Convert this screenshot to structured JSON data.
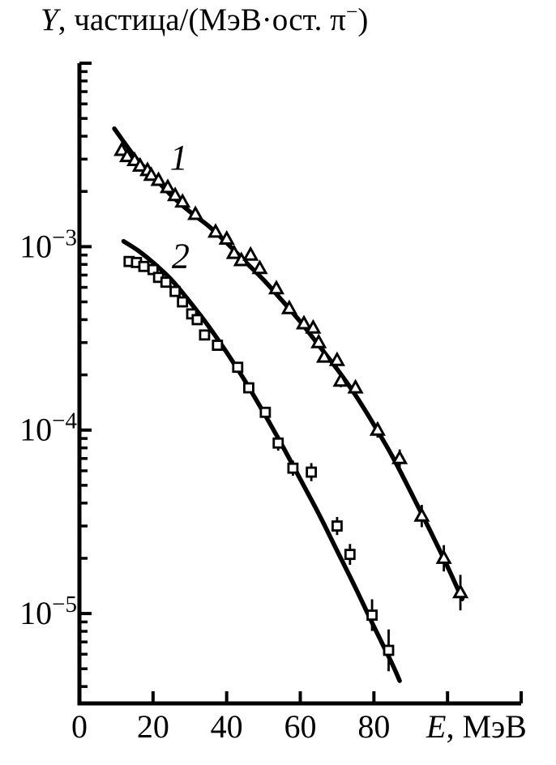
{
  "colors": {
    "ink": "#000000",
    "background": "#ffffff"
  },
  "chart_data": {
    "type": "scatter",
    "title": {
      "italic_prefix": "Y",
      "text": ", частица/(МэВ·ост. π",
      "superscript": "−",
      "suffix": ")"
    },
    "x_axis": {
      "label_italic": "E",
      "label_rest": ", МэВ",
      "min": 0,
      "max": 120,
      "tick_step": 20,
      "labeled_ticks": [
        0,
        20,
        40,
        60,
        80
      ]
    },
    "y_axis": {
      "scale": "log",
      "range_log10": [
        -5.49,
        -2
      ],
      "unlabeled_top_tick": 0.01,
      "major_ticks": [
        {
          "value": 0.001,
          "base": "10",
          "exponent": "−3"
        },
        {
          "value": 0.0001,
          "base": "10",
          "exponent": "−4"
        },
        {
          "value": 1e-05,
          "base": "10",
          "exponent": "−5"
        }
      ],
      "minor_tick_decades": [
        -3,
        -4,
        -5,
        -6
      ]
    },
    "series": [
      {
        "name": "1",
        "marker": "triangle",
        "label_at": {
          "E": 27,
          "Y": 0.0031
        },
        "points": [
          [
            11.5,
            0.00335,
            0
          ],
          [
            13,
            0.0031,
            0
          ],
          [
            15,
            0.00295,
            0
          ],
          [
            16.5,
            0.00275,
            0
          ],
          [
            18.5,
            0.0026,
            0
          ],
          [
            19.5,
            0.00245,
            0
          ],
          [
            21.5,
            0.0023,
            0
          ],
          [
            24,
            0.0021,
            0
          ],
          [
            26,
            0.0019,
            0
          ],
          [
            28,
            0.00175,
            0
          ],
          [
            31.5,
            0.0015,
            0
          ],
          [
            37,
            0.0012,
            0
          ],
          [
            40,
            0.0011,
            0
          ],
          [
            42,
            0.00092,
            0
          ],
          [
            44,
            0.00084,
            0
          ],
          [
            46.5,
            0.0009,
            0
          ],
          [
            49,
            0.00076,
            0
          ],
          [
            53.5,
            0.00059,
            0
          ],
          [
            57,
            0.00046,
            0
          ],
          [
            61,
            0.00038,
            0
          ],
          [
            63.5,
            0.00036,
            0
          ],
          [
            65,
            0.0003,
            0.06
          ],
          [
            66.5,
            0.00025,
            0.06
          ],
          [
            70,
            0.00024,
            0.07
          ],
          [
            71,
            0.000185,
            0.08
          ],
          [
            75,
            0.00017,
            0.08
          ],
          [
            81,
            0.0001,
            0.1
          ],
          [
            87,
            7e-05,
            0.12
          ],
          [
            93,
            3.4e-05,
            0.15
          ],
          [
            99,
            2e-05,
            0.18
          ],
          [
            103.5,
            1.3e-05,
            0.25
          ]
        ],
        "fit_curve": [
          [
            9.5,
            0.0044
          ],
          [
            15,
            0.0031
          ],
          [
            20,
            0.00242
          ],
          [
            25,
            0.0019
          ],
          [
            30,
            0.00155
          ],
          [
            35,
            0.0013
          ],
          [
            40,
            0.00105
          ],
          [
            45,
            0.00083
          ],
          [
            50,
            0.00066
          ],
          [
            55,
            0.00051
          ],
          [
            60,
            0.00039
          ],
          [
            65,
            0.00029
          ],
          [
            70,
            0.000215
          ],
          [
            75,
            0.000155
          ],
          [
            80,
            0.000107
          ],
          [
            85,
            7.2e-05
          ],
          [
            90,
            4.6e-05
          ],
          [
            95,
            2.9e-05
          ],
          [
            100,
            1.8e-05
          ],
          [
            104,
            1.2e-05
          ]
        ]
      },
      {
        "name": "2",
        "marker": "square",
        "label_at": {
          "E": 27.5,
          "Y": 0.0009
        },
        "points": [
          [
            13.5,
            0.00083,
            0
          ],
          [
            15.5,
            0.00082,
            0
          ],
          [
            17.5,
            0.00078,
            0
          ],
          [
            20,
            0.00075,
            0
          ],
          [
            21.5,
            0.00068,
            0
          ],
          [
            23.5,
            0.00064,
            0
          ],
          [
            26,
            0.00057,
            0
          ],
          [
            28,
            0.0005,
            0
          ],
          [
            30.5,
            0.00043,
            0
          ],
          [
            32,
            0.0004,
            0
          ],
          [
            34,
            0.00033,
            0
          ],
          [
            37.5,
            0.00029,
            0
          ],
          [
            43,
            0.00022,
            0
          ],
          [
            46,
            0.00017,
            0.06
          ],
          [
            50.5,
            0.000125,
            0.07
          ],
          [
            54,
            8.5e-05,
            0.1
          ],
          [
            58,
            6.2e-05,
            0.1
          ],
          [
            63,
            5.9e-05,
            0.12
          ],
          [
            70,
            3e-05,
            0.12
          ],
          [
            73.5,
            2.1e-05,
            0.14
          ],
          [
            79.5,
            9.8e-06,
            0.22
          ],
          [
            84,
            6.3e-06,
            0.3
          ]
        ],
        "fit_curve": [
          [
            12,
            0.00107
          ],
          [
            16,
            0.00095
          ],
          [
            20,
            0.00082
          ],
          [
            25,
            0.00066
          ],
          [
            30,
            0.0005
          ],
          [
            35,
            0.00037
          ],
          [
            40,
            0.000265
          ],
          [
            45,
            0.000185
          ],
          [
            50,
            0.000125
          ],
          [
            55,
            8.3e-05
          ],
          [
            60,
            5.4e-05
          ],
          [
            65,
            3.5e-05
          ],
          [
            70,
            2.2e-05
          ],
          [
            75,
            1.38e-05
          ],
          [
            80,
            8.5e-06
          ],
          [
            85,
            5.3e-06
          ],
          [
            87,
            4.3e-06
          ]
        ]
      }
    ]
  }
}
